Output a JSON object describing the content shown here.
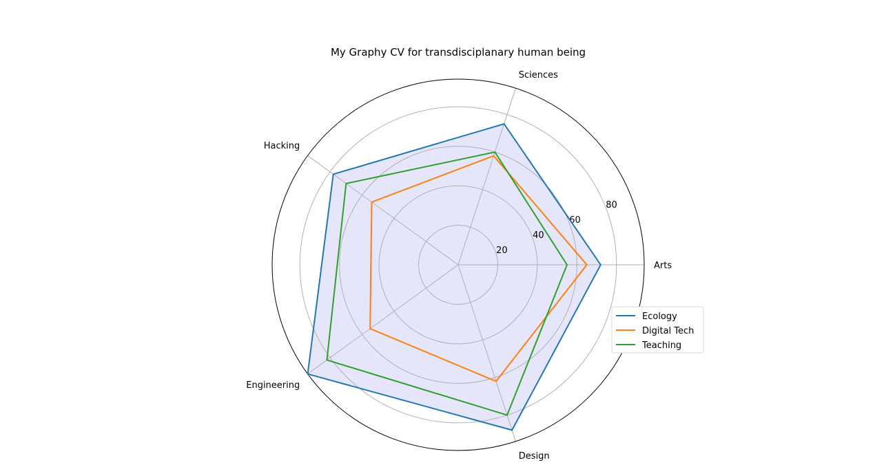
{
  "chart_data": {
    "type": "radar",
    "title": "My Graphy CV for transdisciplanary human being",
    "categories": [
      "Arts",
      "Sciences",
      "Hacking",
      "Engineering",
      "Design"
    ],
    "radial_ticks": [
      20,
      40,
      60,
      80
    ],
    "rlim": [
      0,
      94
    ],
    "grid": true,
    "legend_position": "lower-right",
    "fill_color": "#e6e6fa",
    "series": [
      {
        "name": "Ecology",
        "color": "#1f77b4",
        "values": [
          72,
          75,
          78,
          94,
          88
        ]
      },
      {
        "name": "Digital Tech",
        "color": "#ff7f0e",
        "values": [
          65,
          58,
          54,
          55,
          62
        ]
      },
      {
        "name": "Teaching",
        "color": "#2ca02c",
        "values": [
          55,
          60,
          70,
          82,
          80
        ]
      }
    ]
  }
}
